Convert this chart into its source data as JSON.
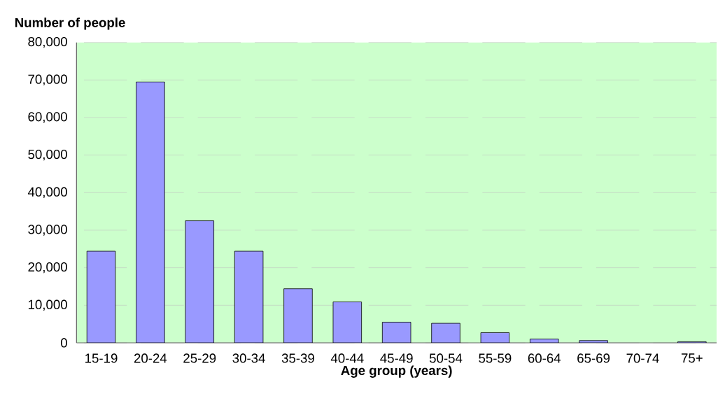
{
  "chart_data": {
    "type": "bar",
    "ylabel": "Number of people",
    "xlabel": "Age group (years)",
    "categories": [
      "15-19",
      "20-24",
      "25-29",
      "30-34",
      "35-39",
      "40-44",
      "45-49",
      "50-54",
      "55-59",
      "60-64",
      "65-69",
      "70-74",
      "75+"
    ],
    "values": [
      24400,
      69500,
      32500,
      24400,
      14400,
      10900,
      5500,
      5200,
      2700,
      1000,
      600,
      null,
      300
    ],
    "color": "#9999ff",
    "ylim": [
      0,
      80000
    ],
    "yticks": [
      {
        "value": 0,
        "label": "0"
      },
      {
        "value": 10000,
        "label": "10,000"
      },
      {
        "value": 20000,
        "label": "20,000"
      },
      {
        "value": 30000,
        "label": "30,000"
      },
      {
        "value": 40000,
        "label": "40,000"
      },
      {
        "value": 50000,
        "label": "50,000"
      },
      {
        "value": 60000,
        "label": "60,000"
      },
      {
        "value": 70000,
        "label": "70,000"
      },
      {
        "value": 80000,
        "label": "80,000"
      }
    ],
    "grid": "y"
  }
}
